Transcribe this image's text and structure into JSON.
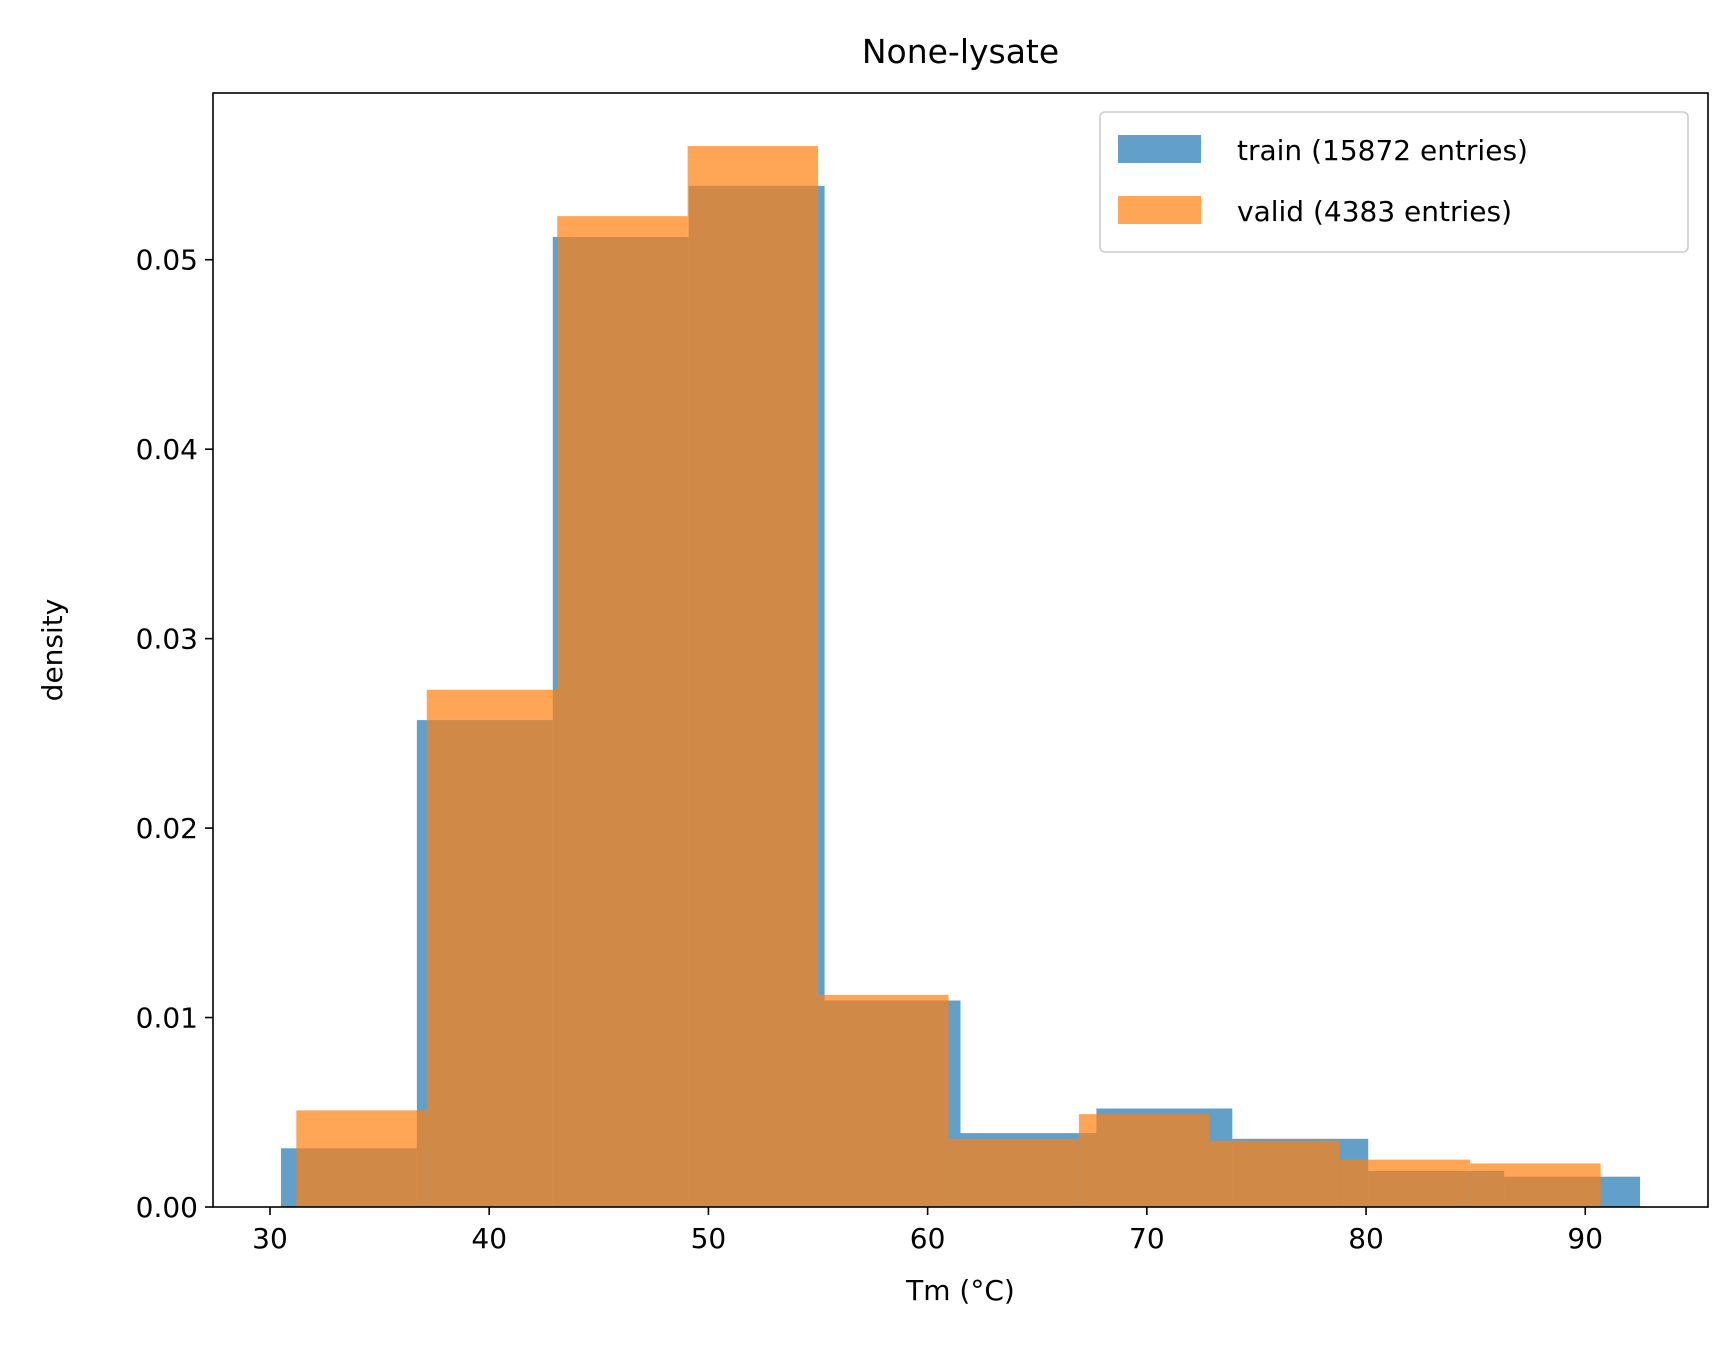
{
  "chart_data": {
    "type": "histogram",
    "title": "None-lysate",
    "xlabel": "Tm (°C)",
    "ylabel": "density",
    "xlim": [
      27.4,
      95.6
    ],
    "ylim": [
      0,
      0.0588
    ],
    "xticks": [
      30,
      40,
      50,
      60,
      70,
      80,
      90
    ],
    "yticks": [
      0.0,
      0.01,
      0.02,
      0.03,
      0.04,
      0.05
    ],
    "ytick_labels": [
      "0.00",
      "0.01",
      "0.02",
      "0.03",
      "0.04",
      "0.05"
    ],
    "grid": false,
    "legend_position": "top-right",
    "series": [
      {
        "name": "train (15872 entries)",
        "color": "#1f77b4",
        "alpha": 0.7,
        "bin_edges": [
          30.5,
          36.7,
          42.9,
          49.1,
          55.3,
          61.5,
          67.7,
          73.9,
          80.1,
          86.3,
          92.5
        ],
        "values": [
          0.0031,
          0.0257,
          0.0512,
          0.0539,
          0.0109,
          0.0039,
          0.0052,
          0.0036,
          0.0019,
          0.0016
        ]
      },
      {
        "name": "valid (4383 entries)",
        "color": "#ff7f0e",
        "alpha": 0.7,
        "bin_edges": [
          31.2,
          37.15,
          43.1,
          49.05,
          55.0,
          60.95,
          66.9,
          72.85,
          78.8,
          84.75,
          90.7
        ],
        "values": [
          0.0051,
          0.0273,
          0.0523,
          0.056,
          0.0112,
          0.0036,
          0.0049,
          0.0035,
          0.0025,
          0.0023
        ]
      }
    ]
  }
}
